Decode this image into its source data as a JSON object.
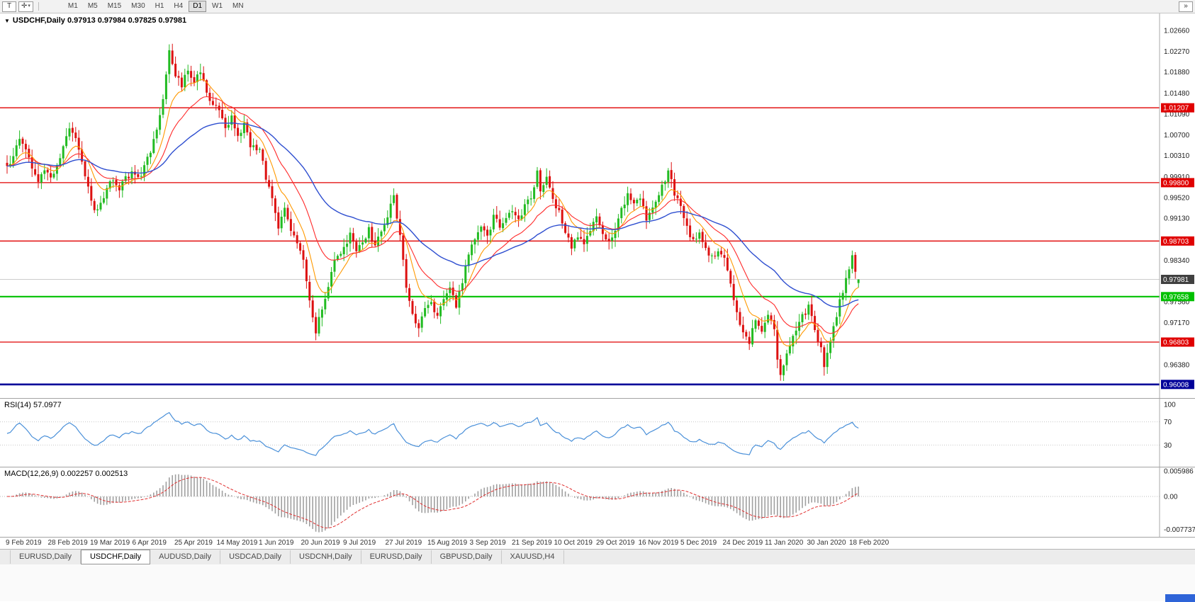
{
  "colors": {
    "candle_up": "#22bb22",
    "candle_down": "#dd1111",
    "ma_fast": "#ff9900",
    "ma_mid": "#ff2a2a",
    "ma_slow": "#2f4fd0",
    "hline_red": "#e00000",
    "hline_green": "#00c000",
    "hline_blue": "#000099",
    "rsi_line": "#4a90d9",
    "macd_hist": "#a0a0a0",
    "macd_signal": "#e03030",
    "price_label_bg": "#404040"
  },
  "toolbar": {
    "t_label": "T",
    "overflow_label": "»",
    "timeframes": [
      "M1",
      "M5",
      "M15",
      "M30",
      "H1",
      "H4",
      "D1",
      "W1",
      "MN"
    ],
    "active_timeframe": "D1"
  },
  "icons": {
    "crosshair": "✛",
    "chevron_down": "▾",
    "symbol_dropdown": "▼"
  },
  "chart": {
    "header": "USDCHF,Daily 0.97913 0.97984 0.97825 0.97981",
    "symbol": "USDCHF",
    "timeframe": "Daily",
    "price_axis": [
      "1.02660",
      "1.02270",
      "1.01880",
      "1.01480",
      "1.01090",
      "1.00700",
      "1.00310",
      "0.99910",
      "0.99520",
      "0.99130",
      "0.98730",
      "0.98340",
      "0.97950",
      "0.97560",
      "0.97170",
      "0.96770",
      "0.96380",
      "0.95990"
    ],
    "current_price": {
      "label": "0.97981",
      "price": 0.97981
    },
    "hlines": [
      {
        "label": "1.01207",
        "price": 1.01207,
        "style": "red"
      },
      {
        "label": "0.99800",
        "price": 0.998,
        "style": "red"
      },
      {
        "label": "0.98703",
        "price": 0.98703,
        "style": "red"
      },
      {
        "label": "0.97658",
        "price": 0.97658,
        "style": "green"
      },
      {
        "label": "0.96803",
        "price": 0.96803,
        "style": "red"
      },
      {
        "label": "0.96008",
        "price": 0.96008,
        "style": "blue"
      }
    ]
  },
  "rsi": {
    "label": "RSI(14) 57.0977",
    "period": 14,
    "last_value": 57.0977,
    "levels": [
      "100",
      "70",
      "30"
    ]
  },
  "macd": {
    "label": "MACD(12,26,9) 0.002257 0.002513",
    "params": [
      12,
      26,
      9
    ],
    "last_values": [
      0.002257,
      0.002513
    ],
    "levels": [
      "0.005986",
      "0.00",
      "-0.007737"
    ]
  },
  "tabs": {
    "active_index": 1,
    "items": [
      "EURUSD,Daily",
      "USDCHF,Daily",
      "AUDUSD,Daily",
      "USDCAD,Daily",
      "USDCNH,Daily",
      "EURUSD,Daily",
      "GBPUSD,Daily",
      "XAUUSD,H4"
    ]
  },
  "chart_data": {
    "type": "candlestick",
    "symbol": "USDCHF",
    "timeframe": "Daily",
    "num_candles": 274,
    "y_axis": {
      "min": 0.9599,
      "max": 1.0266
    },
    "ohlc_last": {
      "o": 0.97913,
      "h": 0.97984,
      "l": 0.97825,
      "c": 0.97981
    },
    "x_labels": [
      "9 Feb 2019",
      "28 Feb 2019",
      "19 Mar 2019",
      "6 Apr 2019",
      "25 Apr 2019",
      "14 May 2019",
      "1 Jun 2019",
      "20 Jun 2019",
      "9 Jul 2019",
      "27 Jul 2019",
      "15 Aug 2019",
      "3 Sep 2019",
      "21 Sep 2019",
      "10 Oct 2019",
      "29 Oct 2019",
      "16 Nov 2019",
      "5 Dec 2019",
      "24 Dec 2019",
      "11 Jan 2020",
      "30 Jan 2020",
      "18 Feb 2020"
    ],
    "indicators": {
      "rsi_period": 14,
      "macd_params": [
        12,
        26,
        9
      ],
      "moving_average_periods": [
        9,
        20,
        50
      ]
    },
    "price_anchors": [
      [
        0,
        1.0005
      ],
      [
        2,
        1.003
      ],
      [
        4,
        1.0062
      ],
      [
        6,
        1.0048
      ],
      [
        8,
        1.0
      ],
      [
        10,
        0.9982
      ],
      [
        12,
        0.9998
      ],
      [
        14,
        0.9988
      ],
      [
        16,
        1.0012
      ],
      [
        18,
        1.0045
      ],
      [
        20,
        1.008
      ],
      [
        22,
        1.006
      ],
      [
        24,
        1.002
      ],
      [
        26,
        0.9975
      ],
      [
        28,
        0.9925
      ],
      [
        30,
        0.9945
      ],
      [
        32,
        0.9968
      ],
      [
        34,
        0.9986
      ],
      [
        36,
        0.9972
      ],
      [
        38,
        0.9988
      ],
      [
        40,
        1.0
      ],
      [
        42,
        0.9985
      ],
      [
        44,
        1.0012
      ],
      [
        46,
        1.0035
      ],
      [
        48,
        1.008
      ],
      [
        50,
        1.014
      ],
      [
        52,
        1.0226
      ],
      [
        54,
        1.0185
      ],
      [
        56,
        1.016
      ],
      [
        58,
        1.0195
      ],
      [
        60,
        1.0172
      ],
      [
        62,
        1.0188
      ],
      [
        64,
        1.015
      ],
      [
        66,
        1.0128
      ],
      [
        68,
        1.011
      ],
      [
        70,
        1.0085
      ],
      [
        72,
        1.0105
      ],
      [
        74,
        1.0068
      ],
      [
        76,
        1.0088
      ],
      [
        78,
        1.005
      ],
      [
        81,
        1.004
      ],
      [
        83,
        0.999
      ],
      [
        85,
        0.9945
      ],
      [
        87,
        0.99
      ],
      [
        89,
        0.993
      ],
      [
        91,
        0.9888
      ],
      [
        93,
        0.9862
      ],
      [
        95,
        0.983
      ],
      [
        97,
        0.976
      ],
      [
        99,
        0.97
      ],
      [
        101,
        0.9742
      ],
      [
        103,
        0.979
      ],
      [
        105,
        0.9838
      ],
      [
        108,
        0.9855
      ],
      [
        110,
        0.988
      ],
      [
        112,
        0.985
      ],
      [
        114,
        0.9872
      ],
      [
        116,
        0.989
      ],
      [
        118,
        0.986
      ],
      [
        120,
        0.9885
      ],
      [
        122,
        0.992
      ],
      [
        124,
        0.9958
      ],
      [
        126,
        0.988
      ],
      [
        128,
        0.9788
      ],
      [
        130,
        0.9732
      ],
      [
        132,
        0.9705
      ],
      [
        134,
        0.974
      ],
      [
        136,
        0.9752
      ],
      [
        138,
        0.9724
      ],
      [
        140,
        0.9762
      ],
      [
        142,
        0.9778
      ],
      [
        144,
        0.975
      ],
      [
        146,
        0.9792
      ],
      [
        148,
        0.9848
      ],
      [
        150,
        0.988
      ],
      [
        152,
        0.9902
      ],
      [
        154,
        0.9878
      ],
      [
        156,
        0.9918
      ],
      [
        158,
        0.9895
      ],
      [
        160,
        0.9912
      ],
      [
        162,
        0.993
      ],
      [
        164,
        0.9905
      ],
      [
        166,
        0.994
      ],
      [
        168,
        0.9952
      ],
      [
        170,
        1.0
      ],
      [
        171,
        0.9958
      ],
      [
        173,
        0.9986
      ],
      [
        175,
        0.9948
      ],
      [
        177,
        0.9925
      ],
      [
        179,
        0.989
      ],
      [
        181,
        0.9862
      ],
      [
        183,
        0.988
      ],
      [
        185,
        0.9858
      ],
      [
        187,
        0.989
      ],
      [
        189,
        0.9915
      ],
      [
        191,
        0.9888
      ],
      [
        193,
        0.9868
      ],
      [
        195,
        0.9895
      ],
      [
        197,
        0.9932
      ],
      [
        199,
        0.9958
      ],
      [
        201,
        0.994
      ],
      [
        203,
        0.995
      ],
      [
        205,
        0.9915
      ],
      [
        207,
        0.9938
      ],
      [
        209,
        0.9962
      ],
      [
        212,
        1.0
      ],
      [
        214,
        0.9962
      ],
      [
        216,
        0.993
      ],
      [
        218,
        0.9898
      ],
      [
        220,
        0.9868
      ],
      [
        222,
        0.9888
      ],
      [
        224,
        0.9858
      ],
      [
        226,
        0.984
      ],
      [
        228,
        0.9856
      ],
      [
        230,
        0.9835
      ],
      [
        232,
        0.9788
      ],
      [
        234,
        0.9738
      ],
      [
        236,
        0.9695
      ],
      [
        238,
        0.9682
      ],
      [
        240,
        0.9722
      ],
      [
        242,
        0.9698
      ],
      [
        244,
        0.9732
      ],
      [
        246,
        0.97
      ],
      [
        247,
        0.9645
      ],
      [
        248,
        0.9615
      ],
      [
        250,
        0.9662
      ],
      [
        252,
        0.9692
      ],
      [
        254,
        0.9722
      ],
      [
        257,
        0.9745
      ],
      [
        259,
        0.9708
      ],
      [
        261,
        0.9665
      ],
      [
        262,
        0.9632
      ],
      [
        264,
        0.9682
      ],
      [
        266,
        0.9732
      ],
      [
        268,
        0.9778
      ],
      [
        270,
        0.9812
      ],
      [
        271,
        0.9838
      ],
      [
        272,
        0.9815
      ],
      [
        273,
        0.97981
      ]
    ]
  }
}
